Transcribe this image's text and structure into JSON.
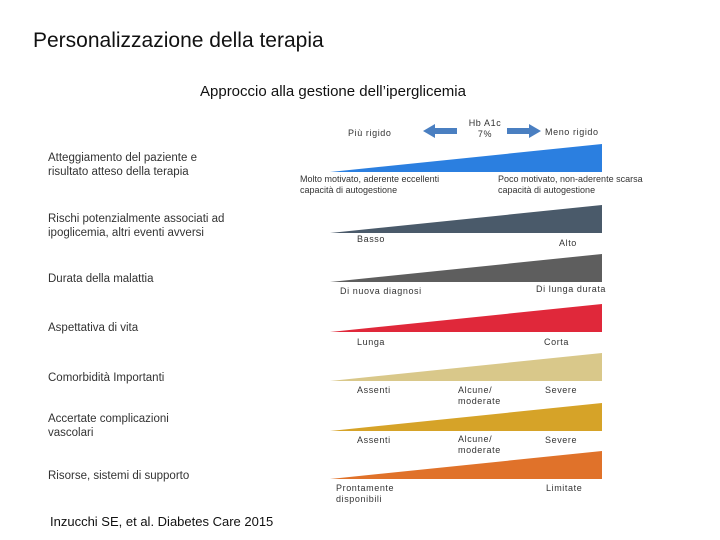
{
  "title": "Personalizzazione della terapia",
  "subtitle": "Approccio alla gestione dell’iperglicemia",
  "header": {
    "left": "Più rigido",
    "center_line1": "Hb A1c",
    "center_line2": "7%",
    "right": "Meno rigido",
    "arrow_color": "#4a7fc1"
  },
  "rows": [
    {
      "label_line1": "Atteggiamento del paziente e",
      "label_line2": "risultato atteso della terapia",
      "color": "#2b7fe0",
      "left_line1": "Molto motivato, aderente eccellenti",
      "left_line2": "capacità di autogestione",
      "right_line1": "Poco motivato, non-aderente scarsa",
      "right_line2": "capacità di autogestione"
    },
    {
      "label_line1": "Rischi potenzialmente associati ad",
      "label_line2": "ipoglicemia, altri eventi avversi",
      "color": "#4a5a6a",
      "left": "Basso",
      "right": "Alto"
    },
    {
      "label": "Durata della malattia",
      "color": "#5e5e5e",
      "left": "Di nuova diagnosi",
      "right": "Di lunga durata"
    },
    {
      "label": "Aspettativa di vita",
      "color": "#e0283a",
      "left": "Lunga",
      "right": "Corta"
    },
    {
      "label": "Comorbidità Importanti",
      "color": "#d9c88a",
      "left": "Assenti",
      "mid_line1": "Alcune/",
      "mid_line2": "moderate",
      "right": "Severe"
    },
    {
      "label_line1": "Accertate complicazioni",
      "label_line2": "vascolari",
      "color": "#d6a328",
      "left": "Assenti",
      "mid_line1": "Alcune/",
      "mid_line2": "moderate",
      "right": "Severe"
    },
    {
      "label": "Risorse, sistemi di supporto",
      "color": "#e0722a",
      "left_line1": "Prontamente",
      "left_line2": "disponibili",
      "right": "Limitate"
    }
  ],
  "citation": "Inzucchi SE, et al. Diabetes Care 2015"
}
